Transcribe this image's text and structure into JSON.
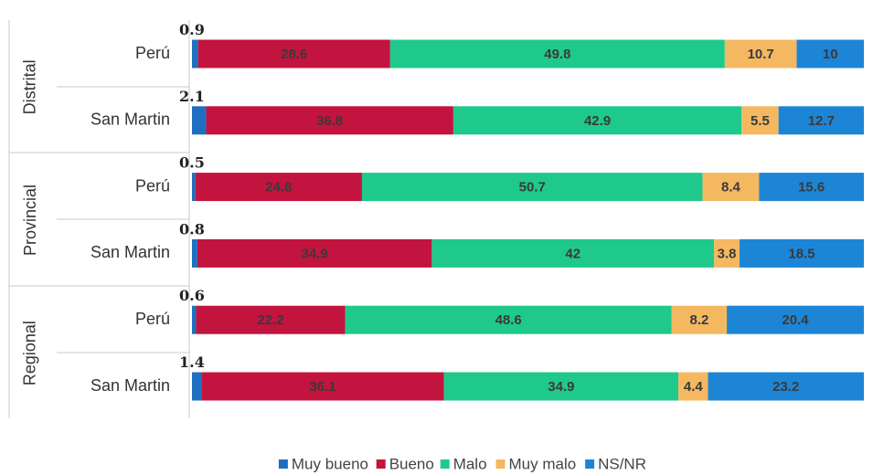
{
  "chart_data": {
    "type": "stacked-bar-horizontal",
    "groups": [
      "Distrital",
      "Provincial",
      "Regional"
    ],
    "categories": [
      "Perú",
      "San Martin",
      "Perú",
      "San Martin",
      "Perú",
      "San Martin"
    ],
    "series": [
      {
        "name": "Muy bueno",
        "color": "#1f6fc0",
        "values": [
          0.9,
          2.1,
          0.5,
          0.8,
          0.6,
          1.4
        ]
      },
      {
        "name": "Bueno",
        "color": "#c2143e",
        "values": [
          28.6,
          36.8,
          24.8,
          34.9,
          22.2,
          36.1
        ]
      },
      {
        "name": "Malo",
        "color": "#1fc98c",
        "values": [
          49.8,
          42.9,
          50.7,
          42.0,
          48.6,
          34.9
        ]
      },
      {
        "name": "Muy malo",
        "color": "#f4b860",
        "values": [
          10.7,
          5.5,
          8.4,
          3.8,
          8.2,
          4.4
        ]
      },
      {
        "name": "NS/NR",
        "color": "#1d85d6",
        "values": [
          10.0,
          12.7,
          15.6,
          18.5,
          20.4,
          23.2
        ]
      }
    ],
    "legend": "bottom"
  }
}
